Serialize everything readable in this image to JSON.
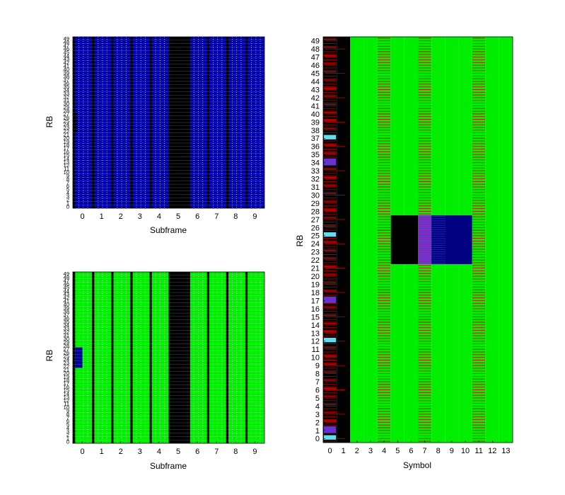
{
  "figure": {
    "background": "#ffffff"
  },
  "chart_data": [
    {
      "type": "heatmap",
      "panel": "top-left",
      "xlabel": "Subframe",
      "ylabel": "RB",
      "x": [
        0,
        1,
        2,
        3,
        4,
        5,
        6,
        7,
        8,
        9
      ],
      "y_range": [
        0,
        49
      ],
      "base_color": "#0000aa",
      "grid_color": "#e8e8e8",
      "columns": [
        {
          "subframe": 0,
          "fill": "blue",
          "markers": [
            {
              "color": "#000000",
              "rb_range": [
                22,
                27
              ]
            }
          ]
        },
        {
          "subframe": 1,
          "fill": "blue"
        },
        {
          "subframe": 2,
          "fill": "blue"
        },
        {
          "subframe": 3,
          "fill": "blue"
        },
        {
          "subframe": 4,
          "fill": "blue"
        },
        {
          "subframe": 5,
          "fill": "black"
        },
        {
          "subframe": 6,
          "fill": "blue"
        },
        {
          "subframe": 7,
          "fill": "blue"
        },
        {
          "subframe": 8,
          "fill": "blue"
        },
        {
          "subframe": 9,
          "fill": "blue"
        }
      ]
    },
    {
      "type": "heatmap",
      "panel": "bottom-left",
      "xlabel": "Subframe",
      "ylabel": "RB",
      "x": [
        0,
        1,
        2,
        3,
        4,
        5,
        6,
        7,
        8,
        9
      ],
      "y_range": [
        0,
        49
      ],
      "base_color": "#00ee00",
      "grid_color": "#e8e8e8",
      "columns": [
        {
          "subframe": 0,
          "fill": "green",
          "blocks": [
            {
              "color": "#000099",
              "rb_range": [
                22,
                27
              ],
              "symbols": [
                0,
                13
              ]
            }
          ]
        },
        {
          "subframe": 1,
          "fill": "green"
        },
        {
          "subframe": 2,
          "fill": "green"
        },
        {
          "subframe": 3,
          "fill": "green"
        },
        {
          "subframe": 4,
          "fill": "green"
        },
        {
          "subframe": 5,
          "fill": "black"
        },
        {
          "subframe": 6,
          "fill": "green"
        },
        {
          "subframe": 7,
          "fill": "green"
        },
        {
          "subframe": 8,
          "fill": "green"
        },
        {
          "subframe": 9,
          "fill": "green"
        }
      ]
    },
    {
      "type": "heatmap",
      "panel": "right",
      "xlabel": "Symbol",
      "ylabel": "RB",
      "x": [
        0,
        1,
        2,
        3,
        4,
        5,
        6,
        7,
        8,
        9,
        10,
        11,
        12,
        13
      ],
      "y_range": [
        0,
        49
      ],
      "colors": {
        "data": "#00ee00",
        "control": "#000000",
        "reference": "#cc0000",
        "allocated": "#000080",
        "cyan": "#66ddee",
        "purple": "#6633cc"
      },
      "symbol_columns": [
        {
          "symbol": 0,
          "fill": "control",
          "stripes": "reference"
        },
        {
          "symbol": 1,
          "fill": "control",
          "stripes": "reference-sparse"
        },
        {
          "symbol": 2,
          "fill": "data"
        },
        {
          "symbol": 3,
          "fill": "data"
        },
        {
          "symbol": 4,
          "fill": "data",
          "stripes": "reference"
        },
        {
          "symbol": 5,
          "fill": "data"
        },
        {
          "symbol": 6,
          "fill": "data"
        },
        {
          "symbol": 7,
          "fill": "data",
          "stripes": "reference"
        },
        {
          "symbol": 8,
          "fill": "data"
        },
        {
          "symbol": 9,
          "fill": "data"
        },
        {
          "symbol": 10,
          "fill": "data"
        },
        {
          "symbol": 11,
          "fill": "data",
          "stripes": "reference"
        },
        {
          "symbol": 12,
          "fill": "data"
        },
        {
          "symbol": 13,
          "fill": "data"
        }
      ],
      "cyan_rbs": [
        0,
        12,
        25,
        37
      ],
      "purple_rbs": [
        1,
        17,
        34
      ],
      "blocks": [
        {
          "label": "control",
          "color": "#000000",
          "symbols": [
            5,
            6
          ],
          "rb_range": [
            22,
            27
          ]
        },
        {
          "label": "purple",
          "color": "#6633cc",
          "symbols": [
            7,
            7
          ],
          "rb_range": [
            22,
            27
          ]
        },
        {
          "label": "allocated",
          "color": "#000080",
          "symbols": [
            8,
            10
          ],
          "rb_range": [
            22,
            27
          ]
        }
      ]
    }
  ]
}
